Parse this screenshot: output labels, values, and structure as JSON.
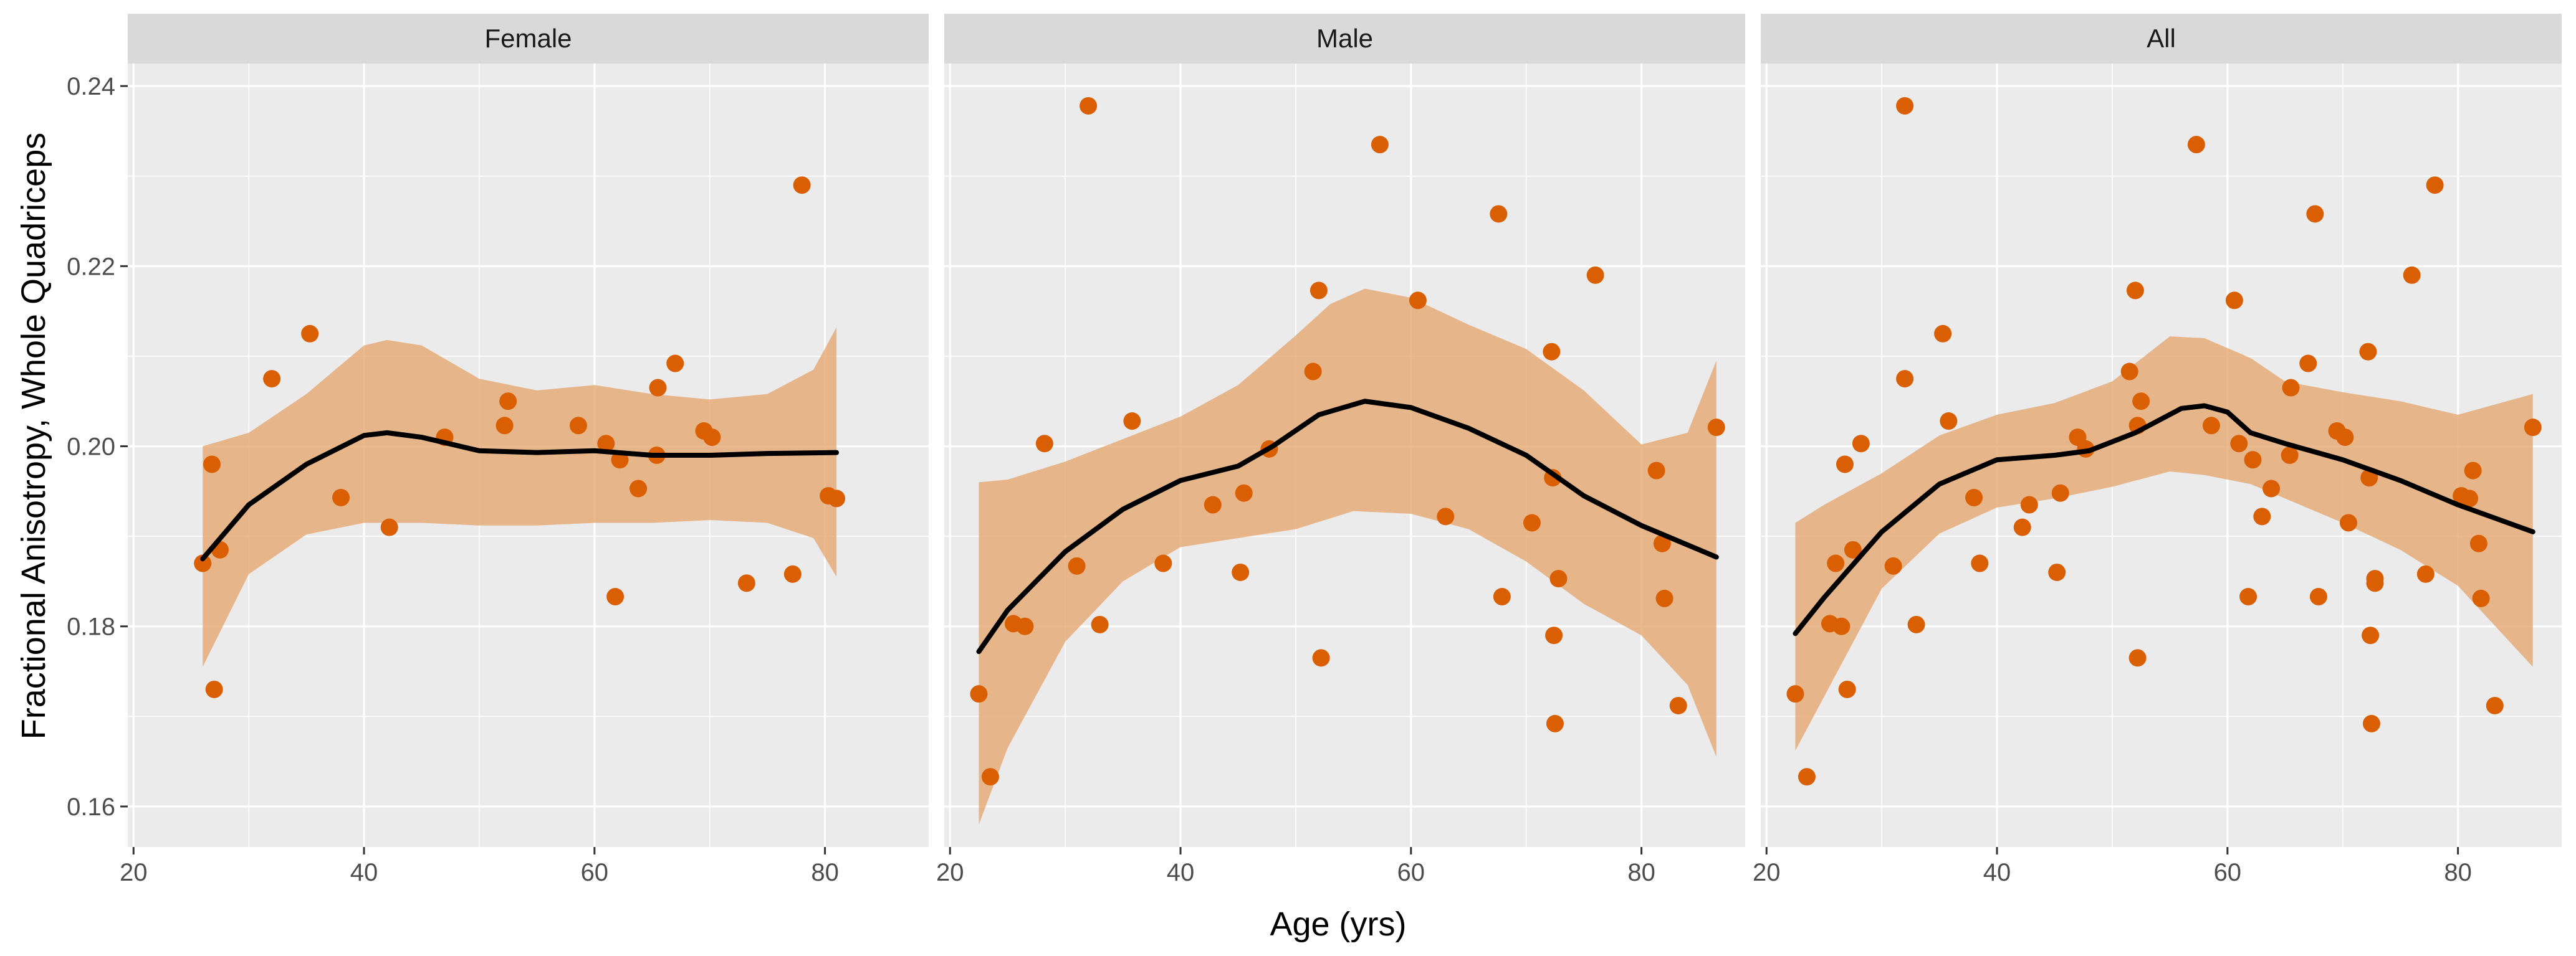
{
  "chart_data": {
    "type": "scatter",
    "ylabel": "Fractional Anisotropy, Whole Quadriceps",
    "xlabel": "Age (yrs)",
    "xlim": [
      19.5,
      89
    ],
    "ylim": [
      0.1555,
      0.2425
    ],
    "x_ticks": [
      20,
      40,
      60,
      80
    ],
    "x_tick_labels": [
      "20",
      "40",
      "60",
      "80"
    ],
    "y_ticks": [
      0.16,
      0.18,
      0.2,
      0.22,
      0.24
    ],
    "y_tick_labels": [
      "0.16",
      "0.18",
      "0.20",
      "0.22",
      "0.24"
    ],
    "point_color": "#d95f02",
    "ribbon_color": "#e6a56e",
    "line_color": "#000000",
    "panels": [
      {
        "title": "Female",
        "points": [
          [
            26,
            0.187
          ],
          [
            26.8,
            0.198
          ],
          [
            27,
            0.173
          ],
          [
            27.5,
            0.1885
          ],
          [
            32,
            0.2075
          ],
          [
            35.3,
            0.2125
          ],
          [
            38,
            0.1943
          ],
          [
            42.2,
            0.191
          ],
          [
            47,
            0.201
          ],
          [
            52.2,
            0.2023
          ],
          [
            52.5,
            0.205
          ],
          [
            58.6,
            0.2023
          ],
          [
            61,
            0.2003
          ],
          [
            61.8,
            0.1833
          ],
          [
            62.2,
            0.1985
          ],
          [
            63.8,
            0.1953
          ],
          [
            65.4,
            0.199
          ],
          [
            65.5,
            0.2065
          ],
          [
            67,
            0.2092
          ],
          [
            69.5,
            0.2017
          ],
          [
            70.2,
            0.201
          ],
          [
            73.2,
            0.1848
          ],
          [
            77.2,
            0.1858
          ],
          [
            78,
            0.229
          ],
          [
            80.3,
            0.1945
          ],
          [
            81,
            0.1942
          ]
        ],
        "smooth": [
          [
            26,
            0.1875
          ],
          [
            30,
            0.1935
          ],
          [
            35,
            0.198
          ],
          [
            40,
            0.2012
          ],
          [
            42,
            0.2015
          ],
          [
            45,
            0.201
          ],
          [
            50,
            0.1995
          ],
          [
            55,
            0.1993
          ],
          [
            60,
            0.1995
          ],
          [
            65,
            0.199
          ],
          [
            70,
            0.199
          ],
          [
            75,
            0.1992
          ],
          [
            81,
            0.1993
          ]
        ],
        "ribbon_upper": [
          [
            26,
            0.2
          ],
          [
            30,
            0.2015
          ],
          [
            35,
            0.2058
          ],
          [
            40,
            0.2112
          ],
          [
            42,
            0.2118
          ],
          [
            45,
            0.2112
          ],
          [
            50,
            0.2075
          ],
          [
            55,
            0.2062
          ],
          [
            60,
            0.2068
          ],
          [
            65,
            0.2058
          ],
          [
            70,
            0.2052
          ],
          [
            75,
            0.2058
          ],
          [
            79,
            0.2085
          ],
          [
            81,
            0.2132
          ]
        ],
        "ribbon_lower": [
          [
            26,
            0.1755
          ],
          [
            30,
            0.1858
          ],
          [
            35,
            0.1902
          ],
          [
            40,
            0.1915
          ],
          [
            45,
            0.1915
          ],
          [
            50,
            0.1912
          ],
          [
            55,
            0.1912
          ],
          [
            60,
            0.1915
          ],
          [
            65,
            0.1915
          ],
          [
            70,
            0.1918
          ],
          [
            75,
            0.1915
          ],
          [
            79,
            0.1898
          ],
          [
            81,
            0.1855
          ]
        ]
      },
      {
        "title": "Male",
        "points": [
          [
            22.5,
            0.1725
          ],
          [
            23.5,
            0.1633
          ],
          [
            25.5,
            0.1803
          ],
          [
            26.5,
            0.18
          ],
          [
            28.2,
            0.2003
          ],
          [
            31,
            0.1867
          ],
          [
            32,
            0.2378
          ],
          [
            33,
            0.1802
          ],
          [
            35.8,
            0.2028
          ],
          [
            38.5,
            0.187
          ],
          [
            42.8,
            0.1935
          ],
          [
            45.2,
            0.186
          ],
          [
            45.5,
            0.1948
          ],
          [
            47.7,
            0.1997
          ],
          [
            51.5,
            0.2083
          ],
          [
            52,
            0.2173
          ],
          [
            52.2,
            0.1765
          ],
          [
            57.3,
            0.2335
          ],
          [
            60.6,
            0.2162
          ],
          [
            63,
            0.1922
          ],
          [
            67.6,
            0.2258
          ],
          [
            67.9,
            0.1833
          ],
          [
            70.5,
            0.1915
          ],
          [
            72.2,
            0.2105
          ],
          [
            72.3,
            0.1965
          ],
          [
            72.4,
            0.179
          ],
          [
            72.5,
            0.1692
          ],
          [
            72.8,
            0.1853
          ],
          [
            76,
            0.219
          ],
          [
            81.3,
            0.1973
          ],
          [
            81.8,
            0.1892
          ],
          [
            82,
            0.1831
          ],
          [
            83.2,
            0.1712
          ],
          [
            86.5,
            0.2021
          ]
        ],
        "smooth": [
          [
            22.5,
            0.1772
          ],
          [
            25,
            0.1818
          ],
          [
            30,
            0.1883
          ],
          [
            35,
            0.193
          ],
          [
            40,
            0.1962
          ],
          [
            45,
            0.1978
          ],
          [
            48,
            0.2
          ],
          [
            52,
            0.2035
          ],
          [
            56,
            0.205
          ],
          [
            60,
            0.2043
          ],
          [
            65,
            0.202
          ],
          [
            70,
            0.199
          ],
          [
            75,
            0.1945
          ],
          [
            80,
            0.1912
          ],
          [
            86.5,
            0.1877
          ]
        ],
        "ribbon_upper": [
          [
            22.5,
            0.196
          ],
          [
            25,
            0.1963
          ],
          [
            30,
            0.1983
          ],
          [
            35,
            0.2008
          ],
          [
            40,
            0.2033
          ],
          [
            45,
            0.2068
          ],
          [
            50,
            0.2123
          ],
          [
            53,
            0.2158
          ],
          [
            56,
            0.2175
          ],
          [
            60,
            0.2165
          ],
          [
            65,
            0.2135
          ],
          [
            70,
            0.2108
          ],
          [
            75,
            0.2062
          ],
          [
            80,
            0.2002
          ],
          [
            84,
            0.2015
          ],
          [
            86.5,
            0.2095
          ]
        ],
        "ribbon_lower": [
          [
            22.5,
            0.158
          ],
          [
            25,
            0.1665
          ],
          [
            30,
            0.1783
          ],
          [
            35,
            0.185
          ],
          [
            40,
            0.1888
          ],
          [
            45,
            0.1898
          ],
          [
            50,
            0.1908
          ],
          [
            55,
            0.1928
          ],
          [
            60,
            0.1925
          ],
          [
            65,
            0.1908
          ],
          [
            70,
            0.1872
          ],
          [
            75,
            0.1825
          ],
          [
            80,
            0.179
          ],
          [
            84,
            0.1735
          ],
          [
            86.5,
            0.1655
          ]
        ]
      },
      {
        "title": "All",
        "points": [
          [
            22.5,
            0.1725
          ],
          [
            23.5,
            0.1633
          ],
          [
            25.5,
            0.1803
          ],
          [
            26,
            0.187
          ],
          [
            26.5,
            0.18
          ],
          [
            26.8,
            0.198
          ],
          [
            27,
            0.173
          ],
          [
            27.5,
            0.1885
          ],
          [
            28.2,
            0.2003
          ],
          [
            31,
            0.1867
          ],
          [
            32,
            0.2378
          ],
          [
            32,
            0.2075
          ],
          [
            33,
            0.1802
          ],
          [
            35.3,
            0.2125
          ],
          [
            35.8,
            0.2028
          ],
          [
            38,
            0.1943
          ],
          [
            38.5,
            0.187
          ],
          [
            42.2,
            0.191
          ],
          [
            42.8,
            0.1935
          ],
          [
            45.2,
            0.186
          ],
          [
            45.5,
            0.1948
          ],
          [
            47,
            0.201
          ],
          [
            47.7,
            0.1997
          ],
          [
            51.5,
            0.2083
          ],
          [
            52,
            0.2173
          ],
          [
            52.2,
            0.1765
          ],
          [
            52.2,
            0.2023
          ],
          [
            52.5,
            0.205
          ],
          [
            57.3,
            0.2335
          ],
          [
            58.6,
            0.2023
          ],
          [
            60.6,
            0.2162
          ],
          [
            61,
            0.2003
          ],
          [
            61.8,
            0.1833
          ],
          [
            62.2,
            0.1985
          ],
          [
            63,
            0.1922
          ],
          [
            63.8,
            0.1953
          ],
          [
            65.4,
            0.199
          ],
          [
            65.5,
            0.2065
          ],
          [
            67,
            0.2092
          ],
          [
            67.6,
            0.2258
          ],
          [
            67.9,
            0.1833
          ],
          [
            69.5,
            0.2017
          ],
          [
            70.2,
            0.201
          ],
          [
            70.5,
            0.1915
          ],
          [
            72.2,
            0.2105
          ],
          [
            72.3,
            0.1965
          ],
          [
            72.4,
            0.179
          ],
          [
            72.5,
            0.1692
          ],
          [
            72.8,
            0.1853
          ],
          [
            72.8,
            0.1848
          ],
          [
            76,
            0.219
          ],
          [
            77.2,
            0.1858
          ],
          [
            78,
            0.229
          ],
          [
            80.3,
            0.1945
          ],
          [
            81,
            0.1942
          ],
          [
            81.3,
            0.1973
          ],
          [
            81.8,
            0.1892
          ],
          [
            82,
            0.1831
          ],
          [
            83.2,
            0.1712
          ],
          [
            86.5,
            0.2021
          ]
        ],
        "smooth": [
          [
            22.5,
            0.1792
          ],
          [
            25,
            0.1832
          ],
          [
            30,
            0.1905
          ],
          [
            35,
            0.1958
          ],
          [
            40,
            0.1985
          ],
          [
            45,
            0.199
          ],
          [
            48,
            0.1995
          ],
          [
            52,
            0.2015
          ],
          [
            56,
            0.2042
          ],
          [
            58,
            0.2045
          ],
          [
            60,
            0.2038
          ],
          [
            62,
            0.2015
          ],
          [
            65,
            0.2003
          ],
          [
            70,
            0.1985
          ],
          [
            75,
            0.1962
          ],
          [
            80,
            0.1935
          ],
          [
            86.5,
            0.1905
          ]
        ],
        "ribbon_upper": [
          [
            22.5,
            0.1915
          ],
          [
            25,
            0.1935
          ],
          [
            30,
            0.197
          ],
          [
            35,
            0.2012
          ],
          [
            40,
            0.2035
          ],
          [
            45,
            0.2048
          ],
          [
            50,
            0.2072
          ],
          [
            55,
            0.2122
          ],
          [
            58,
            0.212
          ],
          [
            62,
            0.2098
          ],
          [
            65,
            0.2072
          ],
          [
            70,
            0.206
          ],
          [
            75,
            0.205
          ],
          [
            80,
            0.2035
          ],
          [
            86.5,
            0.2058
          ]
        ],
        "ribbon_lower": [
          [
            22.5,
            0.1662
          ],
          [
            25,
            0.1722
          ],
          [
            30,
            0.1842
          ],
          [
            35,
            0.1903
          ],
          [
            40,
            0.1932
          ],
          [
            45,
            0.1942
          ],
          [
            50,
            0.1955
          ],
          [
            55,
            0.1972
          ],
          [
            58,
            0.1968
          ],
          [
            62,
            0.1958
          ],
          [
            65,
            0.1942
          ],
          [
            70,
            0.1915
          ],
          [
            75,
            0.1885
          ],
          [
            80,
            0.1845
          ],
          [
            86.5,
            0.1755
          ]
        ]
      }
    ]
  }
}
